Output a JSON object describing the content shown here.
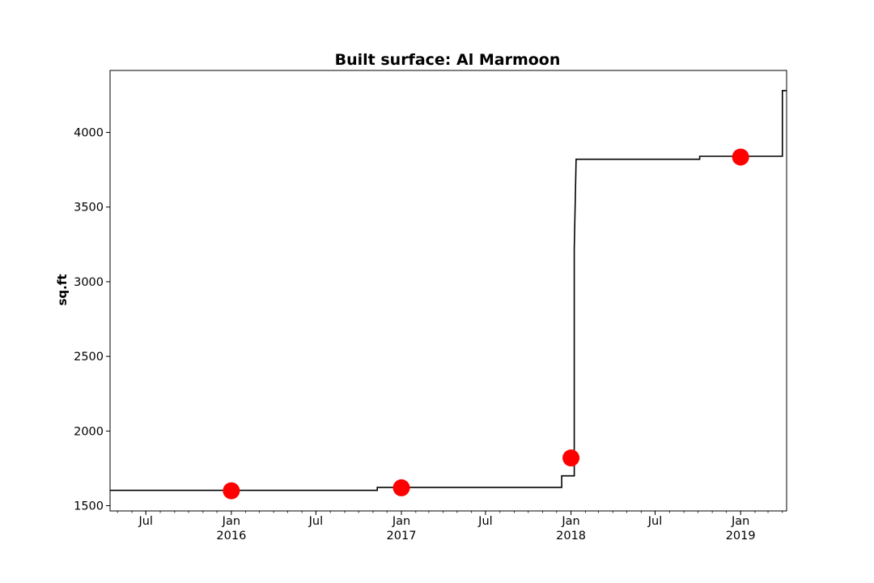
{
  "chart_data": {
    "type": "line",
    "title": "Built surface: Al Marmoon",
    "xlabel": "",
    "ylabel": "sq.ft",
    "xlim": [
      "2015-04-15",
      "2019-04-10"
    ],
    "ylim": [
      1465,
      4415
    ],
    "y_ticks": [
      1500,
      2000,
      2500,
      3000,
      3500,
      4000
    ],
    "x_ticks": [
      {
        "date": "2015-07-01",
        "label": "Jul",
        "sublabel": ""
      },
      {
        "date": "2016-01-01",
        "label": "Jan",
        "sublabel": "2016"
      },
      {
        "date": "2016-07-01",
        "label": "Jul",
        "sublabel": ""
      },
      {
        "date": "2017-01-01",
        "label": "Jan",
        "sublabel": "2017"
      },
      {
        "date": "2017-07-01",
        "label": "Jul",
        "sublabel": ""
      },
      {
        "date": "2018-01-01",
        "label": "Jan",
        "sublabel": "2018"
      },
      {
        "date": "2018-07-01",
        "label": "Jul",
        "sublabel": ""
      },
      {
        "date": "2019-01-01",
        "label": "Jan",
        "sublabel": "2019"
      }
    ],
    "grid": false,
    "series": [
      {
        "style": "step",
        "color": "#000000",
        "x": [
          "2015-04-15",
          "2016-11-10",
          "2016-11-10",
          "2017-12-12",
          "2017-12-12",
          "2018-01-08",
          "2018-01-08",
          "2018-01-12",
          "2018-10-05",
          "2018-10-05",
          "2019-04-01",
          "2019-04-01",
          "2019-04-10"
        ],
        "y": [
          1603,
          1603,
          1623,
          1623,
          1700,
          1700,
          3220,
          3820,
          3820,
          3840,
          3840,
          4280,
          4280
        ]
      },
      {
        "style": "markers",
        "color": "#ff0000",
        "x": [
          "2016-01-01",
          "2017-01-01",
          "2018-01-01",
          "2019-01-01"
        ],
        "y": [
          1600,
          1620,
          1820,
          3835
        ]
      }
    ]
  }
}
